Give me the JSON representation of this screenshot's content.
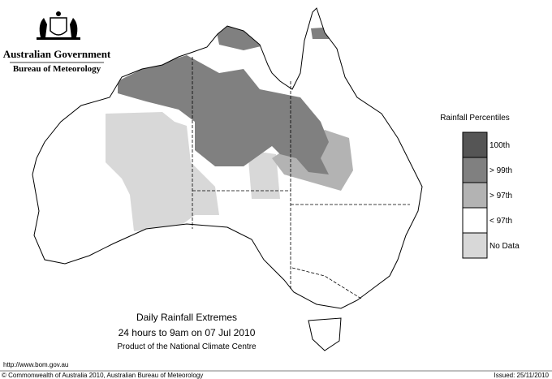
{
  "header": {
    "government": "Australian Government",
    "bureau": "Bureau of Meteorology"
  },
  "legend": {
    "title": "Rainfall Percentiles",
    "items": [
      {
        "label": "100th",
        "color": "#555555"
      },
      {
        "label": "> 99th",
        "color": "#808080"
      },
      {
        "label": "> 97th",
        "color": "#b3b3b3"
      },
      {
        "label": "< 97th",
        "color": "#ffffff"
      },
      {
        "label": "No Data",
        "color": "#d8d8d8"
      }
    ]
  },
  "caption": {
    "title": "Daily Rainfall Extremes",
    "period": "24 hours to 9am on 07 Jul 2010",
    "product": "Product of the National Climate Centre"
  },
  "footer": {
    "url": "http://www.bom.gov.au",
    "copyright": "© Commonwealth of Australia 2010, Australian Bureau of Meteorology",
    "issued": "Issued: 25/11/2010"
  }
}
